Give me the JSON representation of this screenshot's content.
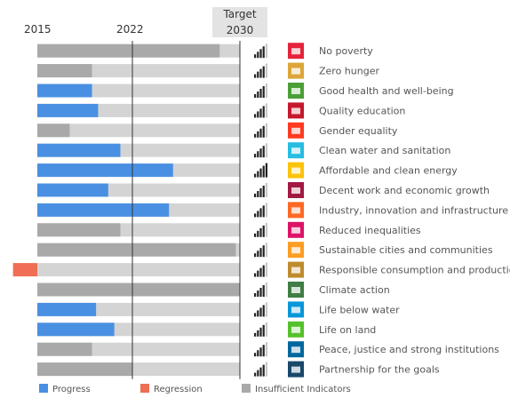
{
  "header": {
    "year_start": "2015",
    "year_mid": "2022",
    "target_line1": "Target",
    "target_line2": "2030"
  },
  "colors": {
    "progress": "#4a90e2",
    "regression": "#ef6e55",
    "insufficient": "#a9a9a9",
    "track": "#d4d4d4",
    "signal_on": "#222222",
    "signal_off": "#c8c8c8"
  },
  "legend": [
    {
      "label": "Progress",
      "color": "#4a90e2"
    },
    {
      "label": "Regression",
      "color": "#ef6e55"
    },
    {
      "label": "Insufficient Indicators",
      "color": "#a9a9a9"
    }
  ],
  "chart_data": {
    "type": "bar",
    "xlabel": "",
    "ylabel": "",
    "x_ticks": [
      "2015",
      "2022",
      "Target 2030"
    ],
    "value_scale": "share of progress from 2015 baseline (0) to 2030 target (1)",
    "categories": [
      "No poverty",
      "Zero hunger",
      "Good health and well-being",
      "Quality education",
      "Gender equality",
      "Clean water and sanitation",
      "Affordable and clean energy",
      "Decent work and economic growth",
      "Industry, innovation and infrastructure",
      "Reduced inequalities",
      "Sustainable cities and communities",
      "Responsible consumption and production",
      "Climate action",
      "Life below water",
      "Life on land",
      "Peace, justice and strong institutions",
      "Partnership for the goals"
    ],
    "series": [
      {
        "name": "Progress",
        "values": [
          0,
          0,
          0.27,
          0.3,
          0,
          0.41,
          0.67,
          0.35,
          0.65,
          0,
          0,
          0,
          0,
          0.29,
          0.38,
          0,
          0
        ]
      },
      {
        "name": "Regression",
        "values": [
          0,
          0,
          0,
          0,
          0,
          0,
          0,
          0,
          0,
          0,
          0,
          0.12,
          0,
          0,
          0,
          0,
          0
        ]
      },
      {
        "name": "Insufficient Indicators",
        "values": [
          0.9,
          0.27,
          0,
          0,
          0.16,
          0,
          0,
          0,
          0,
          0.41,
          0.98,
          0,
          1.0,
          0,
          0,
          0.27,
          0.47
        ]
      }
    ],
    "signal_strength": [
      4,
      4,
      4,
      4,
      4,
      4,
      5,
      4,
      4,
      4,
      4,
      4,
      4,
      4,
      4,
      4,
      4
    ],
    "goal_icon_colors": [
      "#e5243b",
      "#dda63a",
      "#4c9f38",
      "#c5192d",
      "#ff3a21",
      "#26bde2",
      "#fcc30b",
      "#a21942",
      "#fd6925",
      "#dd1367",
      "#fd9d24",
      "#bf8b2e",
      "#3f7e44",
      "#0a97d9",
      "#56c02b",
      "#00689d",
      "#19486a"
    ],
    "xlim": [
      0,
      1
    ]
  }
}
